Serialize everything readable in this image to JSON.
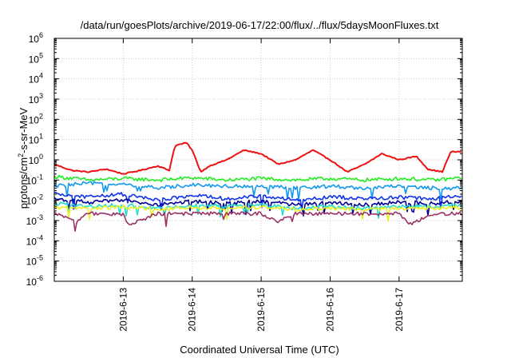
{
  "chart_data": {
    "type": "line",
    "title": "/data/run/goesPlots/archive/2019-06-17/22:00/flux/../flux/5daysMoonFluxes.txt",
    "xlabel": "Coordinated Universal Time (UTC)",
    "ylabel": {
      "base": "protons/cm",
      "sup": "2",
      "rest": "-s-sr-MeV"
    },
    "y_scale": "log",
    "ylim_exp": [
      -6,
      6
    ],
    "y_ticks": [
      {
        "base": "10",
        "exp": "-6"
      },
      {
        "base": "10",
        "exp": "-5"
      },
      {
        "base": "10",
        "exp": "-4"
      },
      {
        "base": "10",
        "exp": "-3"
      },
      {
        "base": "10",
        "exp": "-2"
      },
      {
        "base": "10",
        "exp": "-1"
      },
      {
        "base": "10",
        "exp": "0"
      },
      {
        "base": "10",
        "exp": "1"
      },
      {
        "base": "10",
        "exp": "2"
      },
      {
        "base": "10",
        "exp": "3"
      },
      {
        "base": "10",
        "exp": "4"
      },
      {
        "base": "10",
        "exp": "5"
      },
      {
        "base": "10",
        "exp": "6"
      }
    ],
    "x_ticks": [
      "2019-6-13",
      "2019-6-14",
      "2019-6-15",
      "2019-6-16",
      "2019-6-17"
    ],
    "x_days_range": [
      "2019-06-12",
      "2019-06-17 22:00"
    ],
    "grid": true,
    "legend": "none",
    "series": [
      {
        "color": "#ee1111",
        "x": [
          "2019-06-12 00:00",
          "2019-06-12 06:00",
          "2019-06-12 12:00",
          "2019-06-12 18:00",
          "2019-06-13 00:00",
          "2019-06-13 06:00",
          "2019-06-13 12:00",
          "2019-06-13 16:00",
          "2019-06-13 18:00",
          "2019-06-13 22:00",
          "2019-06-14 00:00",
          "2019-06-14 03:00",
          "2019-06-14 06:00",
          "2019-06-14 12:00",
          "2019-06-14 18:00",
          "2019-06-15 00:00",
          "2019-06-15 06:00",
          "2019-06-15 12:00",
          "2019-06-15 18:00",
          "2019-06-16 00:00",
          "2019-06-16 06:00",
          "2019-06-16 12:00",
          "2019-06-16 18:00",
          "2019-06-17 00:00",
          "2019-06-17 06:00",
          "2019-06-17 10:00",
          "2019-06-17 15:00",
          "2019-06-17 18:00",
          "2019-06-17 22:00"
        ],
        "y": [
          0.6,
          0.3,
          0.25,
          0.35,
          0.2,
          0.3,
          0.5,
          0.3,
          5,
          7,
          3,
          0.25,
          0.5,
          1,
          3,
          2,
          0.6,
          1,
          3,
          1,
          0.25,
          0.6,
          2,
          1,
          1.5,
          0.35,
          0.25,
          2.5,
          2.5
        ]
      },
      {
        "color": "#22ee22",
        "x": [
          "2019-06-12 00:00",
          "2019-06-12 12:00",
          "2019-06-13 00:00",
          "2019-06-13 12:00",
          "2019-06-14 00:00",
          "2019-06-14 12:00",
          "2019-06-15 00:00",
          "2019-06-15 12:00",
          "2019-06-16 00:00",
          "2019-06-16 12:00",
          "2019-06-17 00:00",
          "2019-06-17 12:00",
          "2019-06-17 22:00"
        ],
        "y": [
          0.15,
          0.1,
          0.12,
          0.1,
          0.13,
          0.1,
          0.12,
          0.1,
          0.12,
          0.1,
          0.12,
          0.1,
          0.13
        ]
      },
      {
        "color": "#1199ee",
        "x": [
          "2019-06-12 00:00",
          "2019-06-12 12:00",
          "2019-06-13 00:00",
          "2019-06-13 12:00",
          "2019-06-14 00:00",
          "2019-06-14 12:00",
          "2019-06-15 00:00",
          "2019-06-15 12:00",
          "2019-06-16 00:00",
          "2019-06-16 12:00",
          "2019-06-17 00:00",
          "2019-06-17 12:00",
          "2019-06-17 22:00"
        ],
        "y": [
          0.05,
          0.07,
          0.06,
          0.04,
          0.06,
          0.05,
          0.05,
          0.04,
          0.05,
          0.04,
          0.05,
          0.04,
          0.04
        ]
      },
      {
        "color": "#1133ee",
        "x": [
          "2019-06-12 00:00",
          "2019-06-12 12:00",
          "2019-06-13 00:00",
          "2019-06-13 12:00",
          "2019-06-14 00:00",
          "2019-06-14 12:00",
          "2019-06-15 00:00",
          "2019-06-15 12:00",
          "2019-06-16 00:00",
          "2019-06-16 12:00",
          "2019-06-17 00:00",
          "2019-06-17 12:00",
          "2019-06-17 22:00"
        ],
        "y": [
          0.02,
          0.015,
          0.02,
          0.01,
          0.018,
          0.012,
          0.016,
          0.01,
          0.015,
          0.012,
          0.014,
          0.012,
          0.017
        ]
      },
      {
        "color": "#000099",
        "x": [
          "2019-06-12 00:00",
          "2019-06-12 12:00",
          "2019-06-13 00:00",
          "2019-06-13 12:00",
          "2019-06-14 00:00",
          "2019-06-14 12:00",
          "2019-06-15 00:00",
          "2019-06-15 12:00",
          "2019-06-16 00:00",
          "2019-06-16 12:00",
          "2019-06-17 00:00",
          "2019-06-17 12:00",
          "2019-06-17 22:00"
        ],
        "y": [
          0.012,
          0.008,
          0.01,
          0.006,
          0.009,
          0.007,
          0.009,
          0.006,
          0.008,
          0.006,
          0.008,
          0.007,
          0.009
        ]
      },
      {
        "color": "#22ddcc",
        "x": [
          "2019-06-12 00:00",
          "2019-06-12 12:00",
          "2019-06-13 00:00",
          "2019-06-13 12:00",
          "2019-06-14 00:00",
          "2019-06-14 12:00",
          "2019-06-15 00:00",
          "2019-06-15 12:00",
          "2019-06-16 00:00",
          "2019-06-16 12:00",
          "2019-06-17 00:00",
          "2019-06-17 12:00",
          "2019-06-17 22:00"
        ],
        "y": [
          0.007,
          0.005,
          0.006,
          0.004,
          0.006,
          0.005,
          0.006,
          0.004,
          0.005,
          0.004,
          0.005,
          0.005,
          0.006
        ]
      },
      {
        "color": "#eeee22",
        "x": [
          "2019-06-12 00:00",
          "2019-06-12 12:00",
          "2019-06-13 00:00",
          "2019-06-13 12:00",
          "2019-06-14 00:00",
          "2019-06-14 12:00",
          "2019-06-15 00:00",
          "2019-06-15 12:00",
          "2019-06-16 00:00",
          "2019-06-16 12:00",
          "2019-06-17 00:00",
          "2019-06-17 12:00",
          "2019-06-17 22:00"
        ],
        "y": [
          0.0045,
          0.004,
          0.0045,
          0.0035,
          0.0045,
          0.004,
          0.0045,
          0.0035,
          0.004,
          0.0035,
          0.004,
          0.004,
          0.0045
        ]
      },
      {
        "color": "#993366",
        "x": [
          "2019-06-12 00:00",
          "2019-06-12 08:00",
          "2019-06-12 12:00",
          "2019-06-13 00:00",
          "2019-06-13 02:00",
          "2019-06-13 12:00",
          "2019-06-14 00:00",
          "2019-06-14 12:00",
          "2019-06-15 00:00",
          "2019-06-15 06:00",
          "2019-06-15 12:00",
          "2019-06-16 00:00",
          "2019-06-16 12:00",
          "2019-06-17 00:00",
          "2019-06-17 04:00",
          "2019-06-17 12:00",
          "2019-06-17 22:00"
        ],
        "y": [
          0.0022,
          0.0009,
          0.0023,
          0.002,
          0.0006,
          0.0022,
          0.0022,
          0.0022,
          0.0022,
          0.0009,
          0.0022,
          0.0022,
          0.0022,
          0.0022,
          0.0007,
          0.0022,
          0.0022
        ]
      }
    ]
  }
}
